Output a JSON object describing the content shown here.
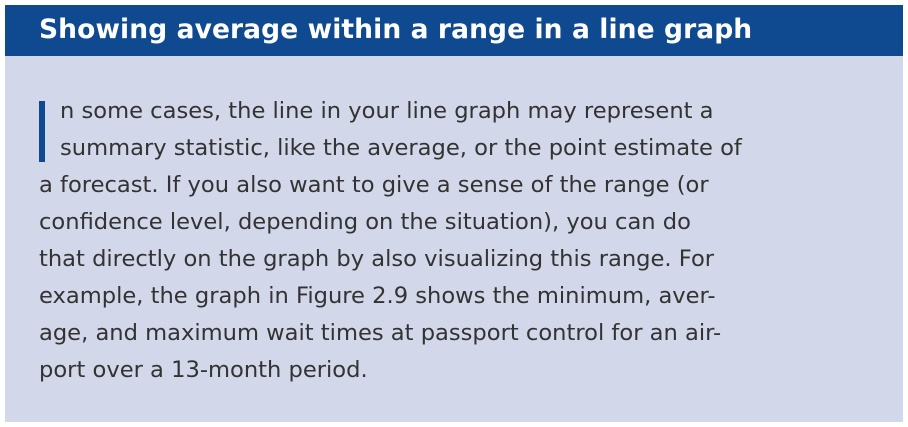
{
  "box": {
    "title": "Showing average within a range in a line graph",
    "lines": [
      "n some cases, the line in your line graph may represent a",
      "summary statistic, like the average, or the point estimate of",
      "a forecast. If you also want to give a sense of the range (or",
      "confidence level, depending on the situation), you can do",
      "that directly on the graph by also visualizing this range. For",
      "example, the graph in Figure 2.9 shows the minimum, aver-",
      "age, and maximum wait times at passport control for an air-",
      "port over a 13-month period."
    ]
  },
  "colors": {
    "header_bg": "#0f4a91",
    "box_bg": "#d3d7ea",
    "text": "#333333",
    "dropcap": "#0f4a91"
  }
}
